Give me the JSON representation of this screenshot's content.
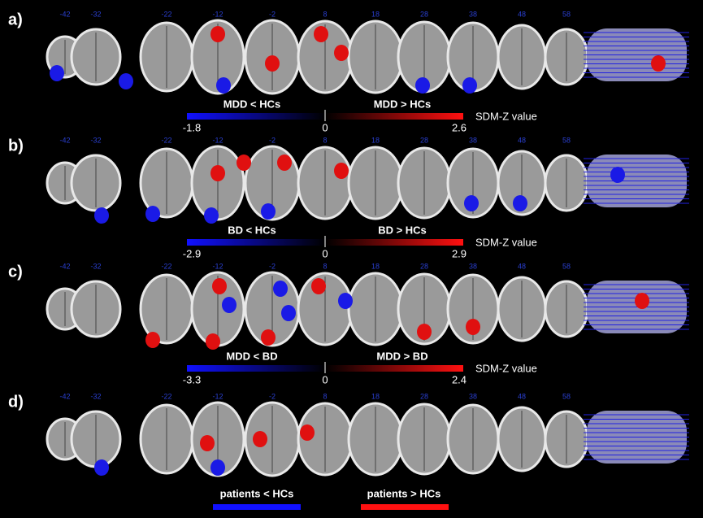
{
  "slice_labels": [
    -42,
    -32,
    -22,
    -12,
    -2,
    8,
    18,
    28,
    38,
    48,
    58
  ],
  "panels": [
    {
      "label": "a)",
      "left_label": "MDD < HCs",
      "right_label": "MDD > HCs",
      "min": -1.8,
      "zero": 0,
      "max": 2.6,
      "scale_title": "SDM-Z value"
    },
    {
      "label": "b)",
      "left_label": "BD < HCs",
      "right_label": "BD > HCs",
      "min": -2.9,
      "zero": 0,
      "max": 2.9,
      "scale_title": "SDM-Z value"
    },
    {
      "label": "c)",
      "left_label": "MDD < BD",
      "right_label": "MDD > BD",
      "min": -3.3,
      "zero": 0,
      "max": 2.4,
      "scale_title": "SDM-Z value"
    },
    {
      "label": "d)",
      "left_label": "patients < HCs",
      "right_label": "patients > HCs"
    }
  ]
}
